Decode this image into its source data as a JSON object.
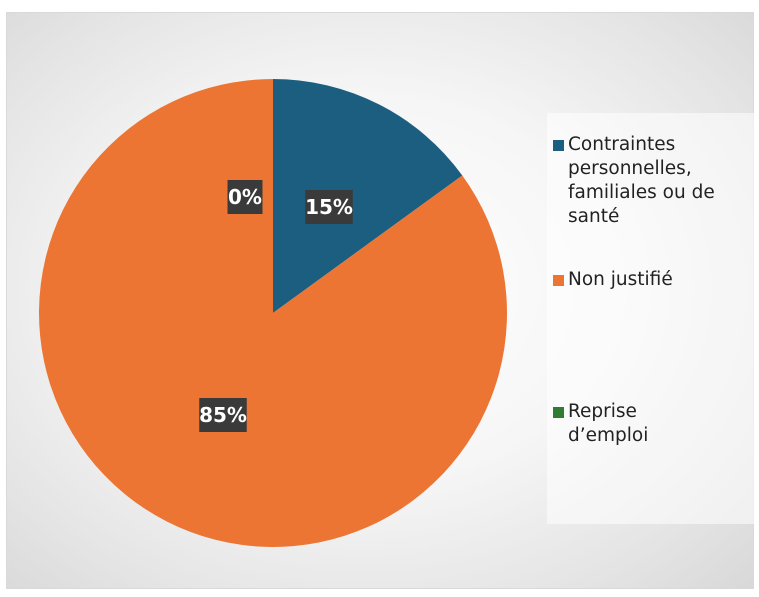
{
  "chart_data": {
    "type": "pie",
    "categories": [
      "Contraintes personnelles, familiales ou de santé",
      "Non justifié",
      "Reprise d’emploi"
    ],
    "values": [
      15,
      85,
      0
    ],
    "data_labels": [
      "15%",
      "85%",
      "0%"
    ],
    "colors": [
      "#1b5e80",
      "#ec7533",
      "#2e7d32"
    ],
    "title": "",
    "legend_position": "right"
  },
  "legend": {
    "items": [
      {
        "label": "Contraintes personnelles, familiales ou de santé",
        "color": "#1b5e80"
      },
      {
        "label": "Non justifié",
        "color": "#ec7533"
      },
      {
        "label": "Reprise d’emploi",
        "color": "#2e7d32"
      }
    ]
  },
  "label_style": {
    "box_color": "#3a3a3a",
    "text_color": "#ffffff"
  }
}
